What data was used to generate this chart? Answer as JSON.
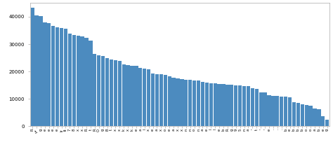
{
  "bar_color": "#4c8bbf",
  "bar_edgecolor": "#4c8bbf",
  "ylim": [
    0,
    45000
  ],
  "yticks": [
    0,
    10000,
    20000,
    30000,
    40000
  ],
  "background_color": "#ffffff",
  "values": [
    43200,
    40600,
    40200,
    38000,
    37600,
    36700,
    36100,
    35800,
    35600,
    33800,
    33400,
    33200,
    32800,
    32400,
    31200,
    26500,
    26000,
    25700,
    24800,
    24400,
    24200,
    23800,
    22700,
    22400,
    22200,
    22000,
    21400,
    21100,
    20700,
    19400,
    19000,
    18900,
    18700,
    18300,
    17800,
    17600,
    17200,
    17000,
    16900,
    16800,
    16700,
    16300,
    15900,
    15700,
    15700,
    15500,
    15400,
    15300,
    15100,
    14900,
    14900,
    14700,
    14700,
    13900,
    13600,
    12400,
    12300,
    11300,
    11100,
    11000,
    10900,
    10800,
    10600,
    8900,
    8500,
    8100,
    7800,
    7600,
    6400,
    6300,
    3700,
    2300
  ],
  "tick_fontsize": 5.0,
  "xlabel_fontsize": 3.8,
  "labels": [
    "R",
    "v*",
    "g",
    "e",
    "e",
    "e",
    "e",
    "lr",
    "lt",
    "7",
    "8",
    "x",
    "x",
    "R",
    "t",
    "R",
    "O",
    "g",
    "B",
    "t",
    "x",
    "x",
    "k",
    "x",
    "k",
    "e",
    "a",
    "l",
    "x",
    "e",
    "a",
    "x",
    "o",
    "e",
    "a",
    "x",
    "x",
    "n",
    "n",
    "o",
    "n",
    "a",
    "e",
    "l",
    "l",
    "e",
    "b",
    "R",
    "g",
    "9",
    "5",
    "n",
    "a",
    "'",
    "t",
    "'",
    "'",
    "e",
    ".",
    ".",
    ".",
    "b",
    "e",
    "b",
    "b",
    "b",
    "o",
    "o",
    "a",
    "b",
    "e",
    "g"
  ]
}
